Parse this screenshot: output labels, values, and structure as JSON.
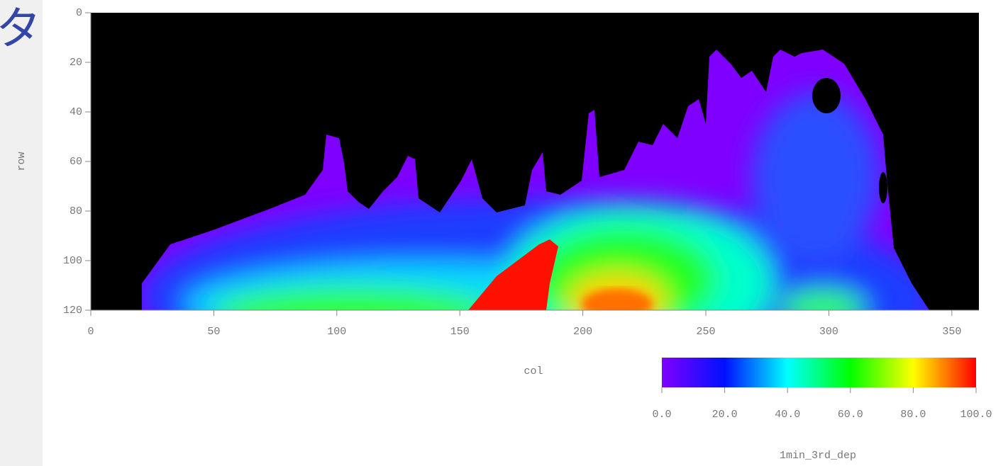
{
  "side_text": "タ",
  "chart_data": {
    "type": "raster",
    "x_label": "col",
    "y_label": "row",
    "xlim": [
      0,
      361
    ],
    "xticks": [
      0,
      50,
      100,
      150,
      200,
      250,
      300,
      350
    ],
    "ylim": [
      0,
      120
    ],
    "y_inverted": true,
    "yticks": [
      0,
      20,
      40,
      60,
      80,
      100,
      120
    ],
    "colorbar": {
      "label": "1min_3rd_dep",
      "clim": [
        0,
        100
      ],
      "colormap": [
        "#8000ff",
        "#0010ff",
        "#00ffff",
        "#00ff00",
        "#ffff00",
        "#ff0000"
      ],
      "ticks": [
        {
          "value": 0,
          "label": "0.0"
        },
        {
          "value": 20,
          "label": "20.0"
        },
        {
          "value": 40,
          "label": "40.0"
        },
        {
          "value": 60,
          "label": "60.0"
        },
        {
          "value": 80,
          "label": "80.0"
        },
        {
          "value": 100,
          "label": "100.0"
        }
      ]
    }
  }
}
